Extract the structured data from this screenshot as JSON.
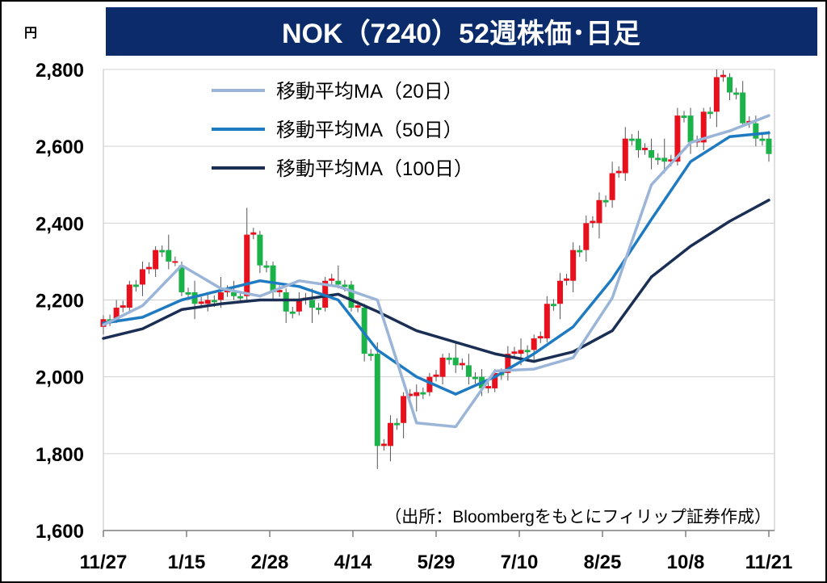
{
  "chart_data": {
    "type": "candlestick",
    "title": "NOK（7240）52週株価･日足",
    "unit_label": "円",
    "source_note": "（出所：Bloombergをもとにフィリップ証券作成）",
    "y_ticks": [
      1600,
      1800,
      2000,
      2200,
      2400,
      2600,
      2800
    ],
    "y_tick_labels": [
      "1,600",
      "1,800",
      "2,000",
      "2,200",
      "2,400",
      "2,600",
      "2,800"
    ],
    "ylim": [
      1600,
      2800
    ],
    "x_tick_labels": [
      "11/27",
      "1/15",
      "2/28",
      "4/14",
      "5/29",
      "7/10",
      "8/25",
      "10/8",
      "11/21"
    ],
    "grid": true,
    "legend_position": "top-left",
    "series": [
      {
        "name": "移動平均MA（20日）",
        "color": "#9ab5d8"
      },
      {
        "name": "移動平均MA（50日）",
        "color": "#1f7bc1"
      },
      {
        "name": "移動平均MA（100日）",
        "color": "#1b2f55"
      }
    ],
    "ma_week_index": [
      0,
      3,
      6,
      9,
      12,
      15,
      18,
      21,
      24,
      27,
      30,
      33,
      36,
      39,
      42,
      45,
      48,
      51
    ],
    "ma20": [
      2135,
      2185,
      2290,
      2230,
      2210,
      2250,
      2235,
      2200,
      1880,
      1870,
      2015,
      2020,
      2050,
      2205,
      2500,
      2610,
      2640,
      2680
    ],
    "ma50": [
      2140,
      2155,
      2200,
      2225,
      2250,
      2235,
      2200,
      2070,
      2000,
      1955,
      2000,
      2060,
      2130,
      2255,
      2410,
      2560,
      2625,
      2635
    ],
    "ma100": [
      2100,
      2125,
      2175,
      2190,
      2200,
      2200,
      2215,
      2170,
      2120,
      2090,
      2060,
      2040,
      2065,
      2120,
      2260,
      2340,
      2405,
      2460
    ],
    "candle_up_color": "#e8101c",
    "candle_down_color": "#1bb24a",
    "candles_weekly": [
      [
        2130,
        2160,
        2110,
        2150
      ],
      [
        2150,
        2200,
        2140,
        2180
      ],
      [
        2180,
        2250,
        2170,
        2240
      ],
      [
        2240,
        2300,
        2210,
        2280
      ],
      [
        2280,
        2340,
        2260,
        2330
      ],
      [
        2330,
        2370,
        2280,
        2300
      ],
      [
        2290,
        2300,
        2210,
        2220
      ],
      [
        2220,
        2250,
        2150,
        2190
      ],
      [
        2190,
        2220,
        2170,
        2200
      ],
      [
        2200,
        2260,
        2180,
        2220
      ],
      [
        2220,
        2250,
        2200,
        2210
      ],
      [
        2210,
        2440,
        2200,
        2370
      ],
      [
        2370,
        2380,
        2270,
        2290
      ],
      [
        2290,
        2300,
        2200,
        2220
      ],
      [
        2220,
        2230,
        2140,
        2170
      ],
      [
        2170,
        2220,
        2160,
        2200
      ],
      [
        2200,
        2230,
        2140,
        2180
      ],
      [
        2180,
        2260,
        2170,
        2250
      ],
      [
        2250,
        2290,
        2230,
        2240
      ],
      [
        2240,
        2250,
        2170,
        2180
      ],
      [
        2180,
        2190,
        2040,
        2060
      ],
      [
        2060,
        2090,
        1760,
        1820
      ],
      [
        1820,
        1900,
        1780,
        1880
      ],
      [
        1880,
        1960,
        1840,
        1950
      ],
      [
        1950,
        1980,
        1910,
        1960
      ],
      [
        1960,
        2010,
        1950,
        2000
      ],
      [
        2000,
        2060,
        1980,
        2050
      ],
      [
        2050,
        2090,
        2010,
        2030
      ],
      [
        2030,
        2060,
        1980,
        2000
      ],
      [
        2000,
        2020,
        1950,
        1970
      ],
      [
        1970,
        2020,
        1960,
        2010
      ],
      [
        2010,
        2080,
        1990,
        2060
      ],
      [
        2060,
        2100,
        2030,
        2070
      ],
      [
        2070,
        2110,
        2040,
        2100
      ],
      [
        2100,
        2210,
        2090,
        2190
      ],
      [
        2190,
        2270,
        2150,
        2250
      ],
      [
        2250,
        2350,
        2220,
        2330
      ],
      [
        2330,
        2420,
        2300,
        2400
      ],
      [
        2400,
        2480,
        2360,
        2460
      ],
      [
        2460,
        2560,
        2440,
        2530
      ],
      [
        2530,
        2650,
        2510,
        2620
      ],
      [
        2620,
        2640,
        2570,
        2590
      ],
      [
        2590,
        2620,
        2540,
        2570
      ],
      [
        2570,
        2620,
        2530,
        2560
      ],
      [
        2560,
        2700,
        2550,
        2680
      ],
      [
        2680,
        2700,
        2580,
        2610
      ],
      [
        2610,
        2700,
        2590,
        2690
      ],
      [
        2690,
        2800,
        2650,
        2780
      ],
      [
        2780,
        2790,
        2720,
        2740
      ],
      [
        2740,
        2770,
        2650,
        2660
      ],
      [
        2660,
        2680,
        2600,
        2620
      ],
      [
        2620,
        2640,
        2560,
        2580
      ]
    ]
  }
}
